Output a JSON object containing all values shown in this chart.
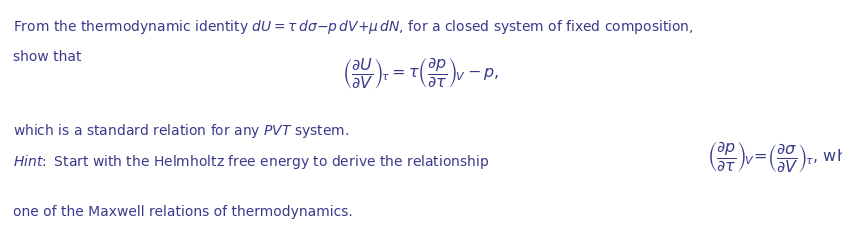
{
  "background_color": "#ffffff",
  "fig_width": 8.42,
  "fig_height": 2.31,
  "dpi": 100,
  "text_color": "#3a3a8c",
  "line1": "From the thermodynamic identity $dU = \\tau\\, d\\sigma{-}p\\, dV{+}\\mu\\, dN$, for a closed system of fixed composition,",
  "line2": "show that",
  "equation1": "$\\left(\\dfrac{\\partial U}{\\partial V}\\right)_{\\!\\tau} = \\tau \\left(\\dfrac{\\partial p}{\\partial \\tau}\\right)_{\\!V} - p,$",
  "line3": "which is a standard relation for any $PVT$ system.",
  "hint_prefix": "$\\mathit{Hint}\\!:$ Start with the Helmholtz free energy to derive the relationship",
  "hint_eq": "$\\left(\\dfrac{\\partial p}{\\partial \\tau}\\right)_{\\!V} \\!=\\! \\left(\\dfrac{\\partial \\sigma}{\\partial V}\\right)_{\\!\\tau}$, which is",
  "line4": "one of the Maxwell relations of thermodynamics.",
  "fs_main": 10.0,
  "fs_eq": 11.5
}
